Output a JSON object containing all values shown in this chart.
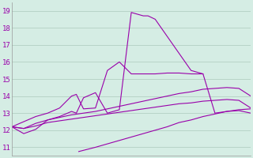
{
  "bg_color": "#d5ede4",
  "plot_bg_color": "#d5ede4",
  "grid_color": "#b8d4c8",
  "line_color": "#9900aa",
  "ylim": [
    10.5,
    19.5
  ],
  "yticks": [
    11,
    12,
    13,
    14,
    15,
    16,
    17,
    18,
    19
  ],
  "xlim": [
    0,
    100
  ],
  "line1_x": [
    0,
    5,
    10,
    15,
    20,
    25,
    27,
    30,
    35,
    40,
    45,
    50,
    55,
    57,
    60,
    65,
    70,
    75,
    80,
    85,
    90,
    95,
    100
  ],
  "line1_y": [
    12.2,
    11.8,
    12.05,
    12.6,
    12.8,
    13.1,
    13.0,
    13.9,
    14.2,
    13.0,
    13.2,
    18.9,
    18.7,
    18.7,
    18.5,
    17.5,
    16.5,
    15.5,
    15.3,
    13.0,
    13.1,
    13.15,
    13.0
  ],
  "line2_x": [
    0,
    5,
    10,
    15,
    20,
    25,
    30,
    35,
    40,
    45,
    50,
    55,
    60,
    65,
    70,
    75,
    80,
    85,
    90,
    95,
    100
  ],
  "line2_y": [
    12.2,
    12.1,
    12.4,
    12.6,
    12.75,
    12.9,
    13.0,
    13.1,
    13.25,
    13.4,
    13.55,
    13.7,
    13.85,
    14.0,
    14.15,
    14.25,
    14.4,
    14.45,
    14.5,
    14.45,
    14.0
  ],
  "line3_x": [
    0,
    5,
    10,
    15,
    20,
    25,
    30,
    35,
    40,
    45,
    50,
    55,
    60,
    65,
    70,
    75,
    80,
    85,
    90,
    95,
    100
  ],
  "line3_y": [
    12.2,
    12.1,
    12.25,
    12.45,
    12.55,
    12.65,
    12.75,
    12.85,
    12.95,
    13.05,
    13.15,
    13.25,
    13.35,
    13.45,
    13.55,
    13.6,
    13.7,
    13.75,
    13.8,
    13.75,
    13.3
  ],
  "line4_x": [
    28,
    35,
    40,
    45,
    50,
    55,
    60,
    65,
    70,
    75,
    80,
    85,
    90,
    95,
    100
  ],
  "line4_y": [
    10.75,
    11.0,
    11.2,
    11.4,
    11.6,
    11.8,
    12.0,
    12.2,
    12.45,
    12.6,
    12.8,
    12.95,
    13.1,
    13.2,
    13.25
  ],
  "line5_x": [
    0,
    5,
    10,
    15,
    20,
    25,
    27,
    30,
    35,
    40,
    45,
    50,
    55,
    60,
    65,
    70,
    75,
    80
  ],
  "line5_y": [
    12.2,
    12.5,
    12.8,
    13.0,
    13.3,
    14.0,
    14.1,
    13.25,
    13.3,
    15.5,
    16.0,
    15.3,
    15.3,
    15.3,
    15.35,
    15.35,
    15.3,
    15.3
  ]
}
